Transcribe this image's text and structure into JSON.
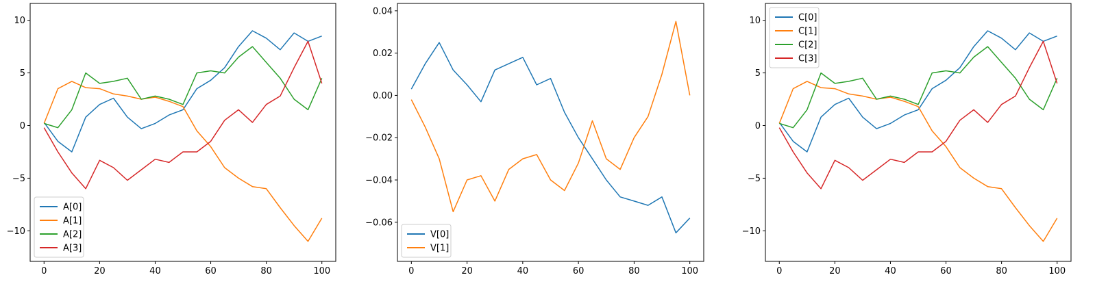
{
  "chart_data": [
    {
      "type": "line",
      "title": "",
      "xlabel": "",
      "ylabel": "",
      "xlim": [
        -5,
        105
      ],
      "ylim": [
        -12.9,
        11.6
      ],
      "xticks": [
        0,
        20,
        40,
        60,
        80,
        100
      ],
      "xtick_labels": [
        "0",
        "20",
        "40",
        "60",
        "80",
        "100"
      ],
      "yticks": [
        -10,
        -5,
        0,
        5,
        10
      ],
      "ytick_labels": [
        "−10",
        "−5",
        "0",
        "5",
        "10"
      ],
      "grid": false,
      "legend": "lower-left",
      "x": [
        0,
        5,
        10,
        15,
        20,
        25,
        30,
        35,
        40,
        45,
        50,
        55,
        60,
        65,
        70,
        75,
        80,
        85,
        90,
        95,
        100
      ],
      "series": [
        {
          "name": "A[0]",
          "color": "#1f77b4",
          "values": [
            0.3,
            -1.5,
            -2.5,
            0.8,
            2.0,
            2.6,
            0.8,
            -0.3,
            0.2,
            1.0,
            1.5,
            3.5,
            4.3,
            5.5,
            7.5,
            9.0,
            8.3,
            7.2,
            8.8,
            8.0,
            8.5
          ]
        },
        {
          "name": "A[1]",
          "color": "#ff7f0e",
          "values": [
            0.2,
            3.5,
            4.2,
            3.6,
            3.5,
            3.0,
            2.8,
            2.5,
            2.7,
            2.3,
            1.8,
            -0.5,
            -2.0,
            -4.0,
            -5.0,
            -5.8,
            -6.0,
            -7.8,
            -9.5,
            -11.0,
            -8.8
          ]
        },
        {
          "name": "A[2]",
          "color": "#2ca02c",
          "values": [
            0.2,
            -0.2,
            1.5,
            5.0,
            4.0,
            4.2,
            4.5,
            2.5,
            2.8,
            2.5,
            2.0,
            5.0,
            5.2,
            5.0,
            6.5,
            7.5,
            6.0,
            4.5,
            2.5,
            1.5,
            4.5
          ]
        },
        {
          "name": "A[3]",
          "color": "#d62728",
          "values": [
            -0.2,
            -2.5,
            -4.5,
            -6.0,
            -3.3,
            -4.0,
            -5.2,
            -4.2,
            -3.2,
            -3.5,
            -2.5,
            -2.5,
            -1.5,
            0.5,
            1.5,
            0.3,
            2.0,
            2.8,
            5.5,
            8.0,
            4.0
          ]
        }
      ]
    },
    {
      "type": "line",
      "title": "",
      "xlabel": "",
      "ylabel": "",
      "xlim": [
        -5,
        105
      ],
      "ylim": [
        -0.0785,
        0.0435
      ],
      "xticks": [
        0,
        20,
        40,
        60,
        80,
        100
      ],
      "xtick_labels": [
        "0",
        "20",
        "40",
        "60",
        "80",
        "100"
      ],
      "yticks": [
        -0.06,
        -0.04,
        -0.02,
        0.0,
        0.02,
        0.04
      ],
      "ytick_labels": [
        "−0.06",
        "−0.04",
        "−0.02",
        "0.00",
        "0.02",
        "0.04"
      ],
      "grid": false,
      "legend": "lower-left",
      "x": [
        0,
        5,
        10,
        15,
        20,
        25,
        30,
        35,
        40,
        45,
        50,
        55,
        60,
        65,
        70,
        75,
        80,
        85,
        90,
        95,
        100
      ],
      "series": [
        {
          "name": "V[0]",
          "color": "#1f77b4",
          "values": [
            0.003,
            0.015,
            0.025,
            0.012,
            0.005,
            -0.003,
            0.012,
            0.015,
            0.018,
            0.005,
            0.008,
            -0.008,
            -0.02,
            -0.03,
            -0.04,
            -0.048,
            -0.05,
            -0.052,
            -0.048,
            -0.065,
            -0.058
          ]
        },
        {
          "name": "V[1]",
          "color": "#ff7f0e",
          "values": [
            -0.002,
            -0.015,
            -0.03,
            -0.055,
            -0.04,
            -0.038,
            -0.05,
            -0.035,
            -0.03,
            -0.028,
            -0.04,
            -0.045,
            -0.032,
            -0.012,
            -0.03,
            -0.035,
            -0.02,
            -0.01,
            0.01,
            0.035,
            0.0
          ]
        }
      ]
    },
    {
      "type": "line",
      "title": "",
      "xlabel": "",
      "ylabel": "",
      "xlim": [
        -5,
        105
      ],
      "ylim": [
        -12.9,
        11.6
      ],
      "xticks": [
        0,
        20,
        40,
        60,
        80,
        100
      ],
      "xtick_labels": [
        "0",
        "20",
        "40",
        "60",
        "80",
        "100"
      ],
      "yticks": [
        -10,
        -5,
        0,
        5,
        10
      ],
      "ytick_labels": [
        "−10",
        "−5",
        "0",
        "5",
        "10"
      ],
      "grid": false,
      "legend": "upper-left",
      "x": [
        0,
        5,
        10,
        15,
        20,
        25,
        30,
        35,
        40,
        45,
        50,
        55,
        60,
        65,
        70,
        75,
        80,
        85,
        90,
        95,
        100
      ],
      "series": [
        {
          "name": "C[0]",
          "color": "#1f77b4",
          "values": [
            0.3,
            -1.5,
            -2.5,
            0.8,
            2.0,
            2.6,
            0.8,
            -0.3,
            0.2,
            1.0,
            1.5,
            3.5,
            4.3,
            5.5,
            7.5,
            9.0,
            8.3,
            7.2,
            8.8,
            8.0,
            8.5
          ]
        },
        {
          "name": "C[1]",
          "color": "#ff7f0e",
          "values": [
            0.2,
            3.5,
            4.2,
            3.6,
            3.5,
            3.0,
            2.8,
            2.5,
            2.7,
            2.3,
            1.8,
            -0.5,
            -2.0,
            -4.0,
            -5.0,
            -5.8,
            -6.0,
            -7.8,
            -9.5,
            -11.0,
            -8.8
          ]
        },
        {
          "name": "C[2]",
          "color": "#2ca02c",
          "values": [
            0.2,
            -0.2,
            1.5,
            5.0,
            4.0,
            4.2,
            4.5,
            2.5,
            2.8,
            2.5,
            2.0,
            5.0,
            5.2,
            5.0,
            6.5,
            7.5,
            6.0,
            4.5,
            2.5,
            1.5,
            4.5
          ]
        },
        {
          "name": "C[3]",
          "color": "#d62728",
          "values": [
            -0.2,
            -2.5,
            -4.5,
            -6.0,
            -3.3,
            -4.0,
            -5.2,
            -4.2,
            -3.2,
            -3.5,
            -2.5,
            -2.5,
            -1.5,
            0.5,
            1.5,
            0.3,
            2.0,
            2.8,
            5.5,
            8.0,
            4.0
          ]
        }
      ]
    }
  ]
}
